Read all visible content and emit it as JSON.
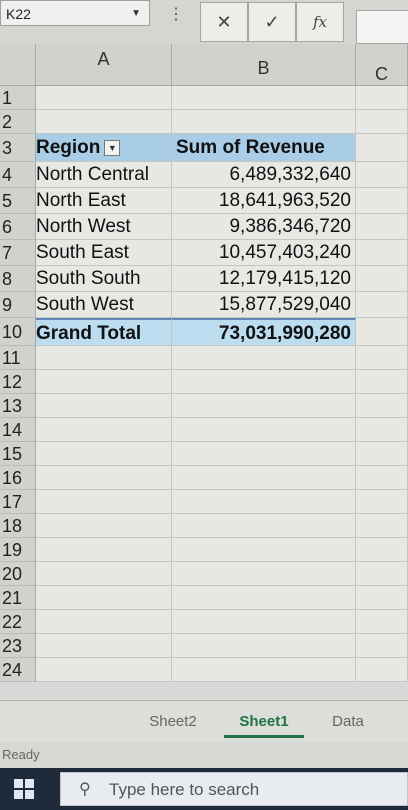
{
  "formula_bar": {
    "namebox": "K22",
    "cancel_icon": "✕",
    "enter_icon": "✓",
    "fx_label": "fx"
  },
  "columns": [
    "A",
    "B",
    "C"
  ],
  "rows": [
    "1",
    "2",
    "3",
    "4",
    "5",
    "6",
    "7",
    "8",
    "9",
    "10",
    "11",
    "12",
    "13",
    "14",
    "15",
    "16",
    "17",
    "18",
    "19",
    "20",
    "21",
    "22",
    "23",
    "24"
  ],
  "pivot": {
    "header": {
      "region": "Region",
      "revenue": "Sum of Revenue"
    },
    "data": [
      {
        "region": "North Central",
        "revenue": "6,489,332,640"
      },
      {
        "region": "North East",
        "revenue": "18,641,963,520"
      },
      {
        "region": "North West",
        "revenue": "9,386,346,720"
      },
      {
        "region": "South East",
        "revenue": "10,457,403,240"
      },
      {
        "region": "South South",
        "revenue": "12,179,415,120"
      },
      {
        "region": "South West",
        "revenue": "15,877,529,040"
      }
    ],
    "total": {
      "region": "Grand Total",
      "revenue": "73,031,990,280"
    }
  },
  "tabs": [
    "Sheet2",
    "Sheet1",
    "Data"
  ],
  "active_tab": "Sheet1",
  "status": "Ready",
  "taskbar": {
    "search_placeholder": "Type here to search"
  },
  "colors": {
    "pivot_header": "#a9cde6",
    "pivot_total": "#bcdcf0",
    "active_tab": "#217346"
  }
}
